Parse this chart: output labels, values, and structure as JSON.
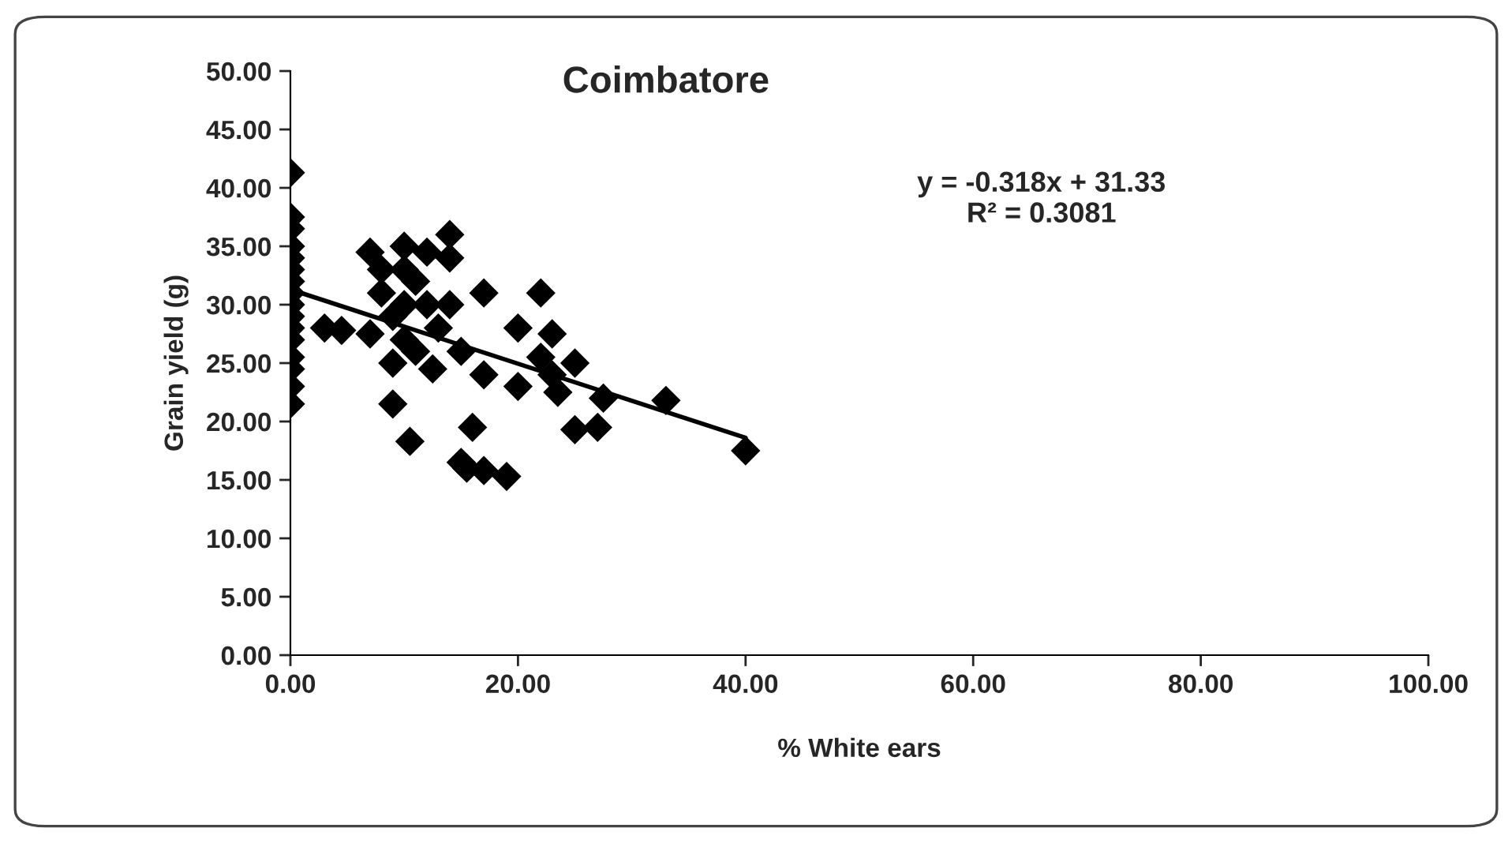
{
  "chart_data": {
    "type": "scatter",
    "title": "Coimbatore",
    "xlabel": "% White ears",
    "ylabel": "Grain yield (g)",
    "xlim": [
      0,
      100
    ],
    "xticks": [
      {
        "value": 0,
        "label": "0.00"
      },
      {
        "value": 20,
        "label": "20.00"
      },
      {
        "value": 40,
        "label": "40.00"
      },
      {
        "value": 60,
        "label": "60.00"
      },
      {
        "value": 80,
        "label": "80.00"
      },
      {
        "value": 100,
        "label": "100.00"
      }
    ],
    "ylim": [
      0,
      50
    ],
    "yticks": [
      {
        "value": 0,
        "label": "0.00"
      },
      {
        "value": 5,
        "label": "5.00"
      },
      {
        "value": 10,
        "label": "10.00"
      },
      {
        "value": 15,
        "label": "15.00"
      },
      {
        "value": 20,
        "label": "20.00"
      },
      {
        "value": 25,
        "label": "25.00"
      },
      {
        "value": 30,
        "label": "30.00"
      },
      {
        "value": 35,
        "label": "35.00"
      },
      {
        "value": 40,
        "label": "40.00"
      },
      {
        "value": 45,
        "label": "45.00"
      },
      {
        "value": 50,
        "label": "50.00"
      }
    ],
    "grid": false,
    "legend": false,
    "marker": "diamond",
    "annotations": [
      "y = -0.318x + 31.33\nR² = 0.3081"
    ],
    "series": [
      {
        "color": "#000000",
        "x": [
          0,
          0,
          0,
          0,
          0,
          0,
          0,
          0,
          0,
          0,
          0,
          0,
          0,
          0,
          0,
          0,
          3,
          4.5,
          7,
          7,
          8,
          8,
          9,
          9,
          9,
          10,
          10,
          10,
          10,
          10.5,
          11,
          11,
          12,
          12,
          12.5,
          13,
          14,
          14,
          14,
          15,
          15,
          15.5,
          16,
          17,
          17,
          17,
          19,
          20,
          20,
          22,
          22,
          23,
          23,
          23.5,
          25,
          25,
          27,
          27.5,
          33,
          40
        ],
        "values": [
          41.3,
          37.5,
          36.5,
          35,
          34,
          33,
          32,
          31,
          30,
          29,
          28,
          27,
          25.5,
          24.5,
          23,
          21.5,
          28,
          27.8,
          27.5,
          34.5,
          33,
          31,
          29,
          25,
          21.5,
          35,
          33,
          30,
          27,
          18.3,
          32,
          26,
          34.5,
          30,
          24.5,
          28,
          36,
          34,
          30,
          26,
          16.5,
          16,
          19.5,
          31,
          24,
          15.8,
          15.3,
          28,
          23,
          31,
          25.5,
          27.5,
          24,
          22.5,
          25,
          19.3,
          19.5,
          22,
          21.8,
          17.5
        ]
      },
      {
        "type": "line",
        "color": "#000000",
        "x": [
          0,
          40
        ],
        "values": [
          31.3,
          18.6
        ],
        "marker": "none",
        "line_style": "solid"
      }
    ]
  }
}
